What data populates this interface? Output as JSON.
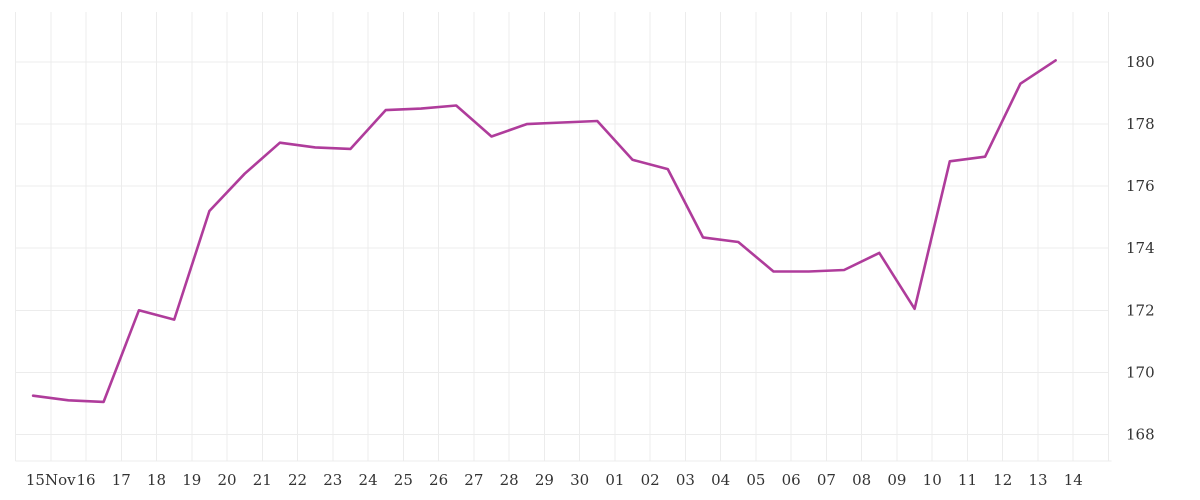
{
  "chart_data": {
    "type": "line",
    "title": "",
    "categories": [
      "15Nov",
      "16",
      "17",
      "18",
      "19",
      "20",
      "21",
      "22",
      "23",
      "24",
      "25",
      "26",
      "27",
      "28",
      "29",
      "30",
      "01",
      "02",
      "03",
      "04",
      "05",
      "06",
      "07",
      "08",
      "09",
      "10",
      "11",
      "12",
      "13",
      "14"
    ],
    "series": [
      {
        "color": "#af3c9b",
        "values": [
          169.25,
          169.1,
          169.05,
          172.0,
          171.7,
          175.2,
          176.4,
          177.4,
          177.25,
          177.2,
          178.45,
          178.5,
          178.6,
          177.6,
          178.0,
          178.05,
          178.1,
          176.85,
          176.55,
          174.35,
          174.2,
          173.25,
          173.25,
          173.3,
          173.85,
          172.05,
          176.8,
          176.95,
          179.3,
          180.05
        ]
      }
    ],
    "x_axis": {
      "tick_labels": [
        "15Nov",
        "16",
        "17",
        "18",
        "19",
        "20",
        "21",
        "22",
        "23",
        "24",
        "25",
        "26",
        "27",
        "28",
        "29",
        "30",
        "01",
        "02",
        "03",
        "04",
        "05",
        "06",
        "07",
        "08",
        "09",
        "10",
        "11",
        "12",
        "13",
        "14"
      ]
    },
    "y_axis": {
      "side": "right",
      "tick_labels": [
        "180",
        "178",
        "176",
        "174",
        "172",
        "170",
        "168"
      ],
      "ticks": [
        180,
        178,
        176,
        174,
        172,
        170,
        168
      ],
      "min": 167.15,
      "max": 181.6
    },
    "grid": {
      "show": true,
      "color": "#ececec"
    },
    "legend_position": "none",
    "background": "#ffffff",
    "text_color": "#333333"
  }
}
